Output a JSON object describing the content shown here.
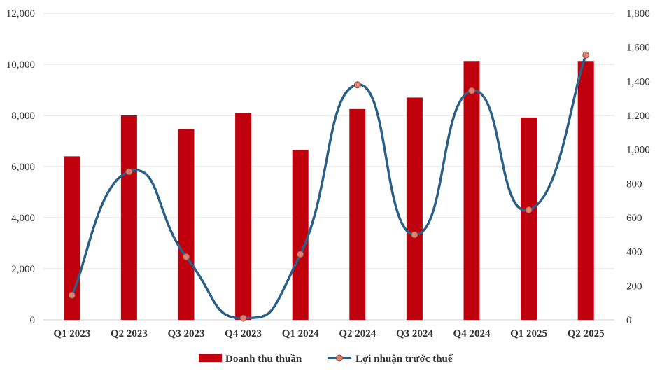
{
  "chart_data": {
    "type": "bar",
    "categories": [
      "Q1 2023",
      "Q2 2023",
      "Q3 2023",
      "Q4 2023",
      "Q1 2024",
      "Q2 2024",
      "Q3 2024",
      "Q4 2024",
      "Q1 2025",
      "Q2 2025"
    ],
    "series": [
      {
        "name": "Doanh thu thuần",
        "type": "bar",
        "axis": "left",
        "color": "#c0000c",
        "values": [
          6400,
          8000,
          7470,
          8100,
          6650,
          8250,
          8700,
          10130,
          7920,
          10130
        ]
      },
      {
        "name": "Lợi nhuận trước thuế",
        "type": "line",
        "smooth": true,
        "axis": "right",
        "color": "#2c5f86",
        "marker_color": "#e07f70",
        "values": [
          145,
          870,
          370,
          10,
          385,
          1380,
          500,
          1345,
          645,
          1555
        ]
      }
    ],
    "y_left": {
      "ylim": [
        0,
        12000
      ],
      "ticks": [
        0,
        2000,
        4000,
        6000,
        8000,
        10000,
        12000
      ],
      "tick_labels": [
        "0",
        "2,000",
        "4,000",
        "6,000",
        "8,000",
        "10,000",
        "12,000"
      ]
    },
    "y_right": {
      "ylim": [
        0,
        1800
      ],
      "ticks": [
        0,
        200,
        400,
        600,
        800,
        1000,
        1200,
        1400,
        1600,
        1800
      ],
      "tick_labels": [
        "0",
        "200",
        "400",
        "600",
        "800",
        "1,000",
        "1,200",
        "1,400",
        "1,600",
        "1,800"
      ]
    },
    "grid": true,
    "legend": {
      "position": "bottom",
      "items": [
        "Doanh thu thuần",
        "Lợi nhuận trước thuế"
      ]
    }
  }
}
